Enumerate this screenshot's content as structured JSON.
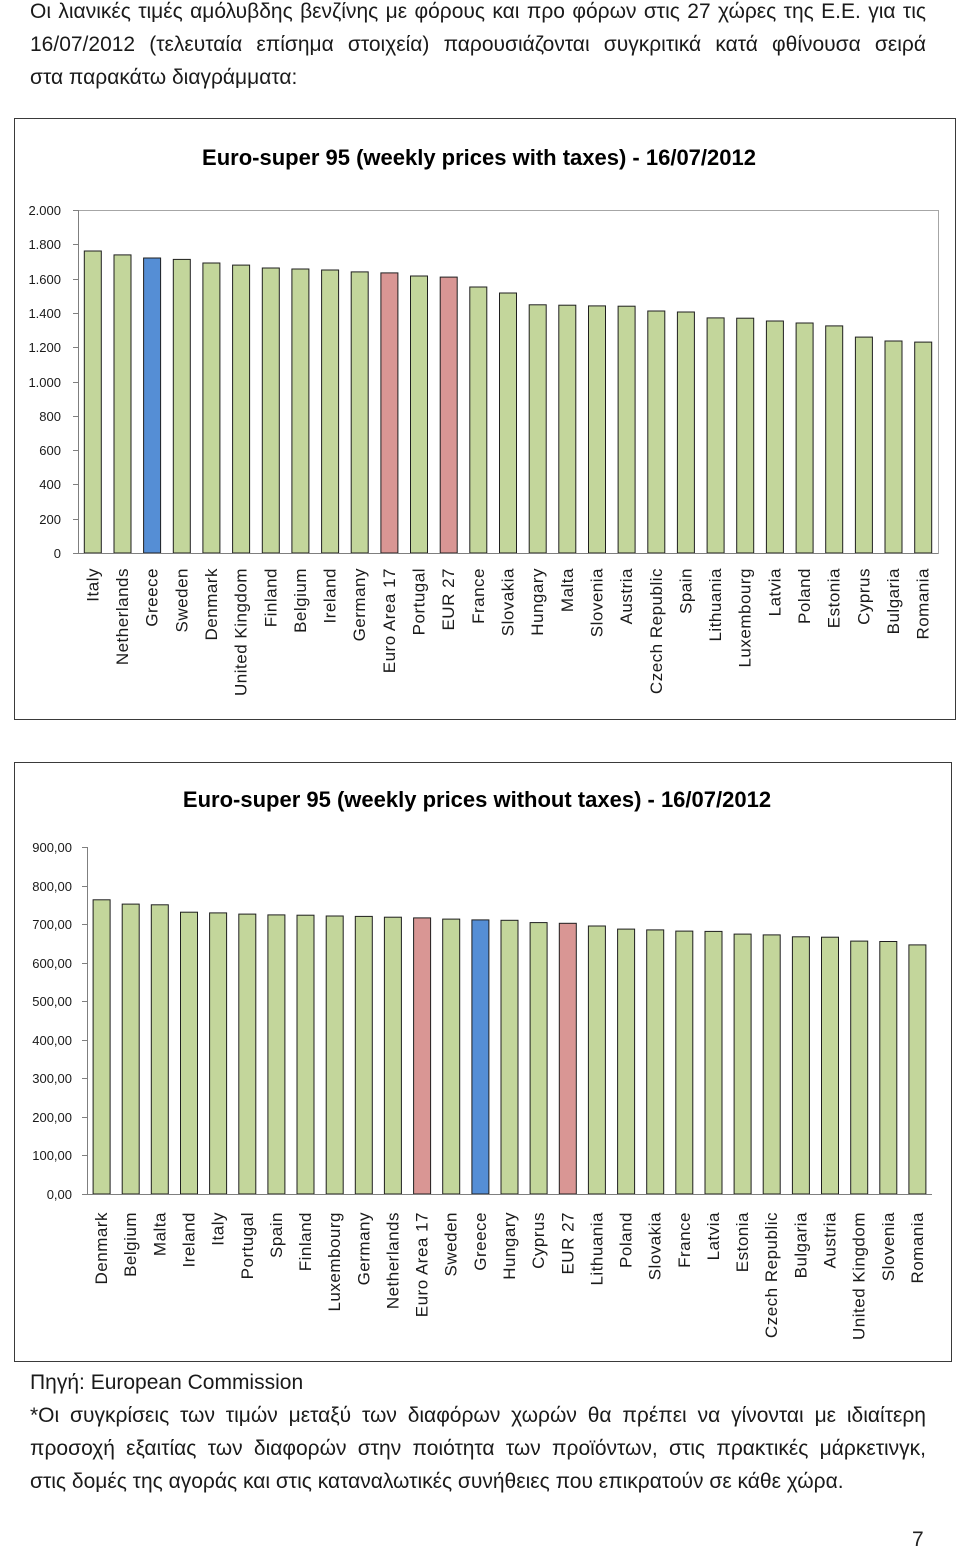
{
  "page": {
    "intro_lines": [
      "Οι λιανικές τιμές αμόλυβδης βενζίνης με φόρους και προ φόρων στις 27 χώρες της Ε.Ε. για τις",
      "16/07/2012 (τελευταία επίσημα στοιχεία) παρουσιάζονται συγκριτικά κατά φθίνουσα σειρά",
      "στα παρακάτω διαγράμματα:"
    ],
    "source": "Πηγή: European Commission",
    "note_lines": [
      "*Οι συγκρίσεις των τιμών μεταξύ των διαφόρων χωρών θα πρέπει να γίνονται με ιδιαίτερη",
      "προσοχή εξαιτίας των διαφορών στην ποιότητα των προϊόντων, στις πρακτικές μάρκετινγκ,",
      "στις δομές της αγοράς και στις καταναλωτικές συνήθειες που επικρατούν σε κάθε χώρα."
    ],
    "page_number": "7"
  },
  "chart_data": [
    {
      "type": "bar",
      "title": "Euro-super 95 (weekly prices with taxes) - 16/07/2012",
      "categories": [
        "Italy",
        "Netherlands",
        "Greece",
        "Sweden",
        "Denmark",
        "United Kingdom",
        "Finland",
        "Belgium",
        "Ireland",
        "Germany",
        "Euro Area 17",
        "Portugal",
        "EUR 27",
        "France",
        "Slovakia",
        "Hungary",
        "Malta",
        "Slovenia",
        "Austria",
        "Czech Republic",
        "Spain",
        "Lithuania",
        "Luxembourg",
        "Latvia",
        "Poland",
        "Estonia",
        "Cyprus",
        "Bulgaria",
        "Romania"
      ],
      "values": [
        1761,
        1738,
        1720,
        1712,
        1691,
        1679,
        1662,
        1656,
        1650,
        1639,
        1633,
        1615,
        1609,
        1551,
        1516,
        1447,
        1445,
        1441,
        1439,
        1411,
        1405,
        1371,
        1369,
        1353,
        1341,
        1324,
        1259,
        1236,
        1230
      ],
      "ylim": [
        0,
        2000
      ],
      "ytick_values": [
        0,
        200,
        400,
        600,
        800,
        1000,
        1200,
        1400,
        1600,
        1800,
        2000
      ],
      "ytick_labels": [
        "0",
        "200",
        "400",
        "600",
        "800",
        "1.000",
        "1.200",
        "1.400",
        "1.600",
        "1.800",
        "2.000"
      ],
      "grid": false,
      "bar_color": "#C3D69B",
      "bar_edge_color": "#1F1F1F",
      "highlight_colors": {
        "Greece": "#558ED5",
        "Euro Area 17": "#D99694",
        "EUR 27": "#D99694"
      }
    },
    {
      "type": "bar",
      "title": "Euro-super 95 (weekly prices without taxes) - 16/07/2012",
      "categories": [
        "Denmark",
        "Belgium",
        "Malta",
        "Ireland",
        "Italy",
        "Portugal",
        "Spain",
        "Finland",
        "Luxembourg",
        "Germany",
        "Netherlands",
        "Euro Area 17",
        "Sweden",
        "Greece",
        "Hungary",
        "Cyprus",
        "EUR 27",
        "Lithuania",
        "Poland",
        "Slovakia",
        "France",
        "Latvia",
        "Estonia",
        "Czech Republic",
        "Bulgaria",
        "Austria",
        "United Kingdom",
        "Slovenia",
        "Romania"
      ],
      "values": [
        763,
        752,
        750,
        731,
        729,
        726,
        724,
        723,
        721,
        720,
        718,
        716,
        713,
        711,
        710,
        704,
        702,
        695,
        687,
        685,
        682,
        681,
        674,
        672,
        667,
        666,
        656,
        655,
        646
      ],
      "ylim": [
        0,
        900
      ],
      "ytick_values": [
        0,
        100,
        200,
        300,
        400,
        500,
        600,
        700,
        800,
        900
      ],
      "ytick_labels": [
        "0,00",
        "100,00",
        "200,00",
        "300,00",
        "400,00",
        "500,00",
        "600,00",
        "700,00",
        "800,00",
        "900,00"
      ],
      "grid": false,
      "bar_color": "#C3D69B",
      "bar_edge_color": "#1F1F1F",
      "highlight_colors": {
        "Greece": "#558ED5",
        "Euro Area 17": "#D99694",
        "EUR 27": "#D99694"
      }
    }
  ]
}
